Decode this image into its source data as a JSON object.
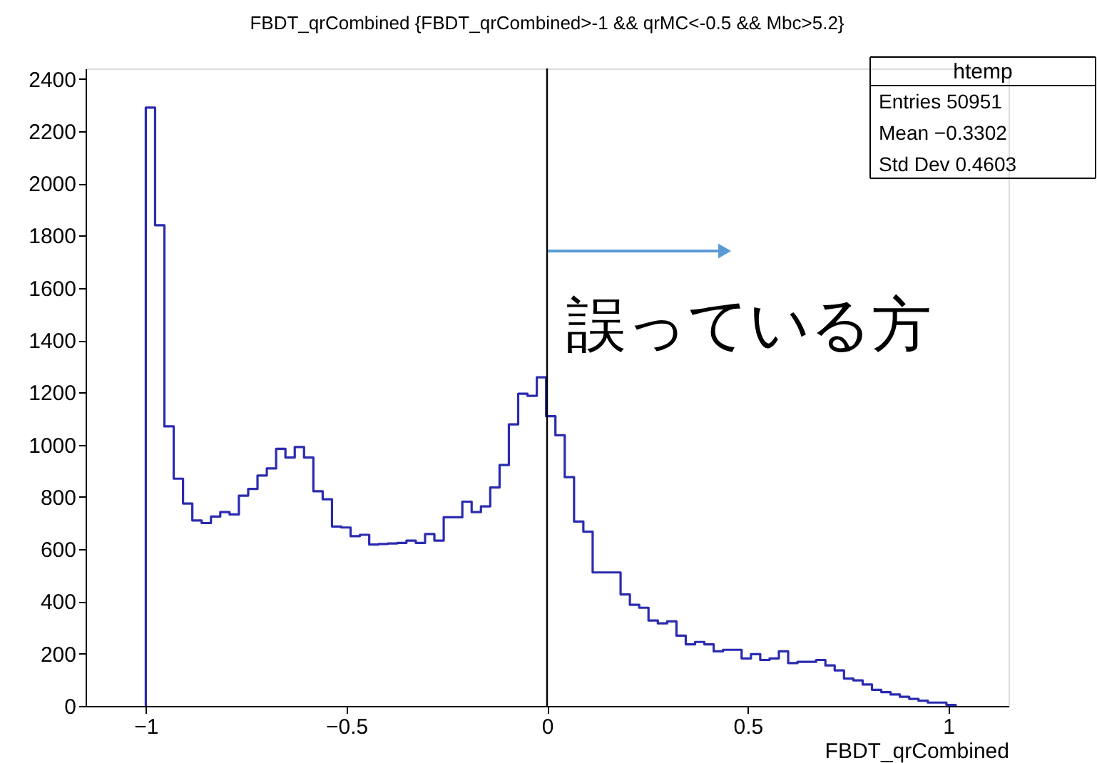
{
  "chart_data": {
    "type": "histogram",
    "title": "FBDT_qrCombined {FBDT_qrCombined>-1 && qrMC<-0.5 && Mbc>5.2}",
    "xlabel": "FBDT_qrCombined",
    "bins": [
      -1.0,
      -0.9768,
      -0.9536,
      -0.9304,
      -0.9072,
      -0.884,
      -0.8608,
      -0.8376,
      -0.8144,
      -0.7912,
      -0.768,
      -0.7448,
      -0.7216,
      -0.6984,
      -0.6752,
      -0.652,
      -0.6288,
      -0.6056,
      -0.5824,
      -0.5592,
      -0.536,
      -0.5128,
      -0.4896,
      -0.4664,
      -0.4432,
      -0.42,
      -0.3968,
      -0.3736,
      -0.3504,
      -0.3272,
      -0.304,
      -0.2808,
      -0.2576,
      -0.2344,
      -0.2112,
      -0.188,
      -0.1648,
      -0.1416,
      -0.1184,
      -0.0952,
      -0.072,
      -0.0488,
      -0.0256,
      -0.0024,
      0.0208,
      0.044,
      0.0672,
      0.0904,
      0.1136,
      0.1368,
      0.16,
      0.1832,
      0.2064,
      0.2296,
      0.2528,
      0.276,
      0.2992,
      0.3224,
      0.3456,
      0.3688,
      0.392,
      0.4152,
      0.4384,
      0.4616,
      0.4848,
      0.508,
      0.5312,
      0.5544,
      0.5776,
      0.6008,
      0.624,
      0.6472,
      0.6704,
      0.6936,
      0.7168,
      0.74,
      0.7632,
      0.7864,
      0.8096,
      0.8328,
      0.856,
      0.8792,
      0.9024,
      0.9256,
      0.9488,
      0.972,
      0.9952,
      1.0184
    ],
    "values": [
      2290,
      1840,
      1070,
      870,
      775,
      710,
      700,
      725,
      742,
      733,
      805,
      831,
      882,
      909,
      984,
      951,
      991,
      951,
      822,
      791,
      687,
      683,
      650,
      655,
      618,
      620,
      622,
      624,
      633,
      624,
      658,
      633,
      722,
      722,
      782,
      742,
      764,
      836,
      922,
      1078,
      1195,
      1187,
      1258,
      1109,
      1036,
      876,
      706,
      667,
      511,
      511,
      511,
      427,
      387,
      376,
      327,
      316,
      324,
      269,
      236,
      245,
      236,
      209,
      215,
      215,
      182,
      198,
      176,
      182,
      209,
      164,
      169,
      169,
      176,
      155,
      136,
      105,
      98,
      82,
      62,
      53,
      44,
      35,
      27,
      20,
      13,
      13,
      4
    ],
    "color": "#2b2bb0",
    "xlim": [
      -1.15,
      1.15
    ],
    "xticks": [
      -1,
      -0.5,
      0,
      0.5,
      1
    ],
    "ylim": [
      0,
      2440
    ],
    "yticks": [
      0,
      200,
      400,
      600,
      800,
      1000,
      1200,
      1400,
      1600,
      1800,
      2000,
      2200,
      2400
    ],
    "ref_lines": [
      {
        "axis": "x",
        "value": 0,
        "color": "#000000"
      }
    ],
    "annotations": [
      "誤っている方",
      "htemp",
      "Entries 50951",
      "Mean −0.3302",
      "Std Dev 0.4603"
    ],
    "grid": false
  }
}
